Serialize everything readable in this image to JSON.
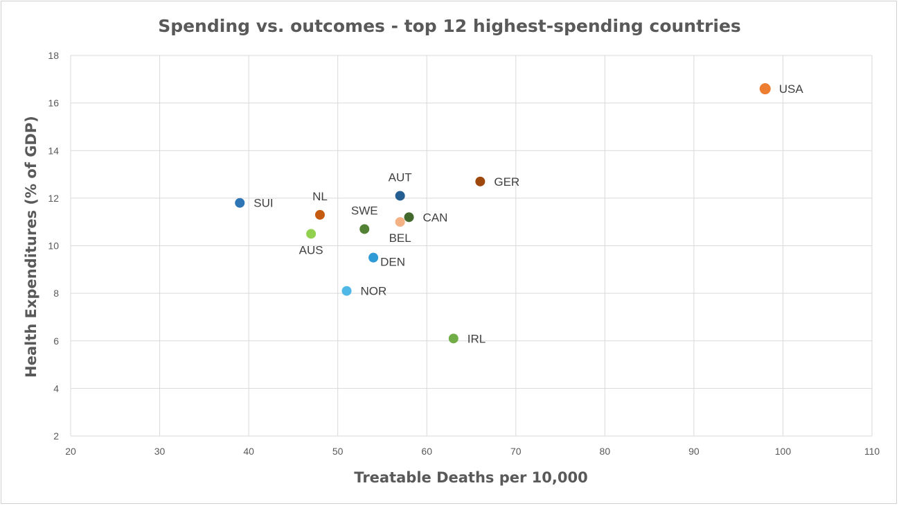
{
  "chart_data": {
    "type": "scatter",
    "title": "Spending vs. outcomes - top 12 highest-spending countries",
    "xlabel": "Treatable Deaths per 10,000",
    "ylabel": "Health Expenditures  (% of GDP)",
    "xlim": [
      20,
      110
    ],
    "ylim": [
      2,
      18
    ],
    "xticks": [
      20,
      30,
      40,
      50,
      60,
      70,
      80,
      90,
      100,
      110
    ],
    "yticks": [
      2,
      4,
      6,
      8,
      10,
      12,
      14,
      16,
      18
    ],
    "grid": true,
    "points": [
      {
        "label": "USA",
        "x": 98,
        "y": 16.6,
        "color": "#ed7d31",
        "label_pos": "right",
        "size": "large"
      },
      {
        "label": "GER",
        "x": 66,
        "y": 12.7,
        "color": "#9e480e",
        "label_pos": "right"
      },
      {
        "label": "AUT",
        "x": 57,
        "y": 12.1,
        "color": "#255e91",
        "label_pos": "above"
      },
      {
        "label": "SUI",
        "x": 39,
        "y": 11.8,
        "color": "#2e75b6",
        "label_pos": "right"
      },
      {
        "label": "NL",
        "x": 48,
        "y": 11.3,
        "color": "#c55a11",
        "label_pos": "above"
      },
      {
        "label": "CAN",
        "x": 58,
        "y": 11.2,
        "color": "#43682b",
        "label_pos": "right"
      },
      {
        "label": "BEL",
        "x": 57,
        "y": 11.0,
        "color": "#f4b183",
        "label_pos": "below"
      },
      {
        "label": "SWE",
        "x": 53,
        "y": 10.7,
        "color": "#548235",
        "label_pos": "above"
      },
      {
        "label": "AUS",
        "x": 47,
        "y": 10.5,
        "color": "#92d050",
        "label_pos": "below"
      },
      {
        "label": "DEN",
        "x": 54,
        "y": 9.5,
        "color": "#2e9ad6",
        "label_pos": "below-right"
      },
      {
        "label": "NOR",
        "x": 51,
        "y": 8.1,
        "color": "#4fb8e6",
        "label_pos": "right"
      },
      {
        "label": "IRL",
        "x": 63,
        "y": 6.1,
        "color": "#70ad47",
        "label_pos": "right"
      }
    ]
  }
}
